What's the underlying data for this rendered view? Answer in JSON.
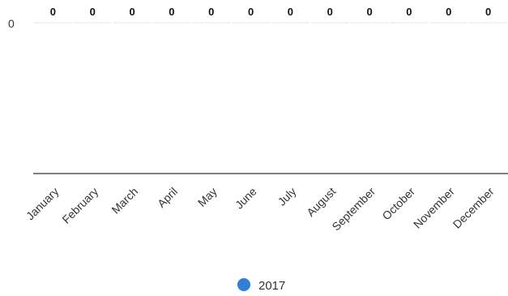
{
  "chart_data": {
    "type": "bar",
    "categories": [
      "January",
      "February",
      "March",
      "April",
      "May",
      "June",
      "July",
      "August",
      "September",
      "October",
      "November",
      "December"
    ],
    "series": [
      {
        "name": "2017",
        "values": [
          0,
          0,
          0,
          0,
          0,
          0,
          0,
          0,
          0,
          0,
          0,
          0
        ],
        "color": "#2f7ed8"
      }
    ],
    "value_labels": [
      "0",
      "0",
      "0",
      "0",
      "0",
      "0",
      "0",
      "0",
      "0",
      "0",
      "0",
      "0"
    ],
    "y_ticks": [
      "0"
    ],
    "grid": true,
    "legend_position": "bottom-center",
    "title": "",
    "xlabel": "",
    "ylabel": ""
  }
}
